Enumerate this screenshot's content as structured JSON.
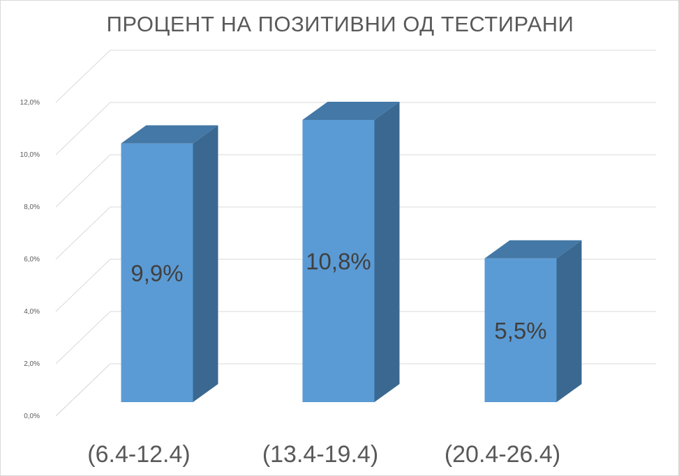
{
  "chart_data": {
    "type": "bar",
    "title": "ПРОЦЕНТ НА ПОЗИТИВНИ ОД ТЕСТИРАНИ",
    "categories": [
      "(6.4-12.4)",
      "(13.4-19.4)",
      "(20.4-26.4)"
    ],
    "values": [
      9.9,
      10.8,
      5.5
    ],
    "data_labels": [
      "9,9%",
      "10,8%",
      "5,5%"
    ],
    "y_ticks": [
      "0,0%",
      "2,0%",
      "4,0%",
      "6,0%",
      "8,0%",
      "10,0%",
      "12,0%"
    ],
    "ylim": [
      0,
      12
    ],
    "grid": true,
    "style": "3d-column",
    "colors": {
      "front": "#5b9bd5",
      "side": "#3a6890",
      "top": "#4478a6",
      "grid": "#d9d9d9"
    }
  }
}
